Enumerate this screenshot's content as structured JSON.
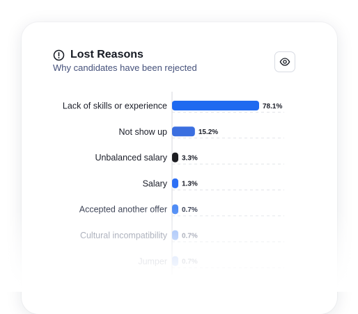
{
  "header": {
    "title": "Lost Reasons",
    "subtitle": "Why candidates have been rejected",
    "title_icon": "alert-circle-icon",
    "view_button_icon": "eye-icon"
  },
  "chart_data": {
    "type": "bar",
    "orientation": "horizontal",
    "categories": [
      "Lack of skills or experience",
      "Not show up",
      "Unbalanced salary",
      "Salary",
      "Accepted another offer",
      "Cultural incompatibility",
      "Jumper"
    ],
    "values": [
      78.1,
      15.2,
      3.3,
      1.3,
      0.7,
      0.7,
      0.7
    ],
    "value_labels": [
      "78.1%",
      "15.2%",
      "3.3%",
      "1.3%",
      "0.7%",
      "0.7%",
      "0.7%"
    ],
    "colors": [
      "#1f6af0",
      "#3b6fe0",
      "#1c1d22",
      "#2d6ff5",
      "#4f8cf5",
      "#8fb4f7",
      "#b9cff9"
    ],
    "xlim": [
      0,
      100
    ],
    "grid": true,
    "legend": "none"
  }
}
